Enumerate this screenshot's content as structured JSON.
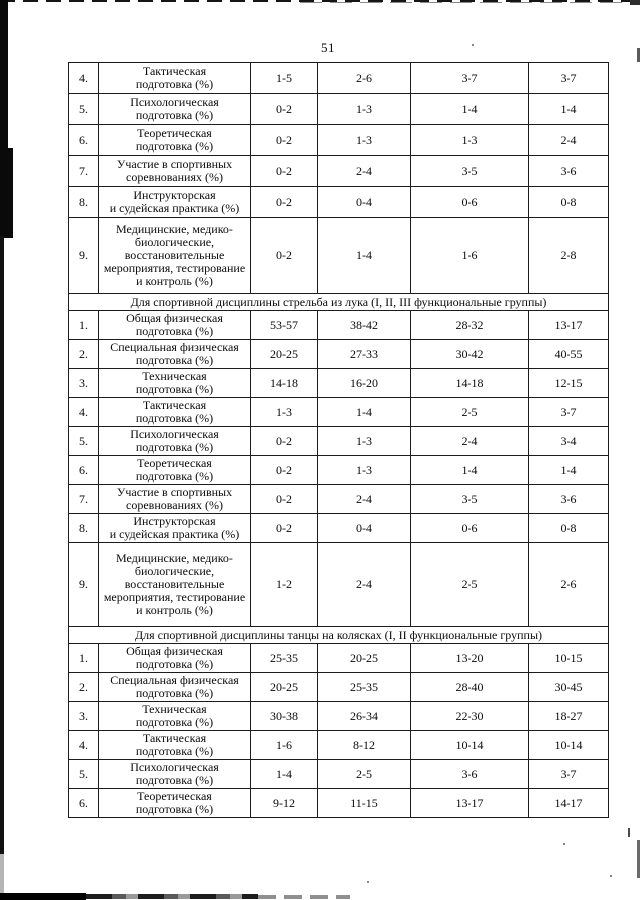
{
  "page": {
    "number": "51"
  },
  "table": {
    "sections": [
      {
        "title": null,
        "rows": [
          {
            "num": "4.",
            "label": "Тактическая\nподготовка (%)",
            "values": [
              "1-5",
              "2-6",
              "3-7",
              "3-7"
            ]
          },
          {
            "num": "5.",
            "label": "Психологическая\nподготовка (%)",
            "values": [
              "0-2",
              "1-3",
              "1-4",
              "1-4"
            ]
          },
          {
            "num": "6.",
            "label": "Теоретическая\nподготовка (%)",
            "values": [
              "0-2",
              "1-3",
              "1-3",
              "2-4"
            ]
          },
          {
            "num": "7.",
            "label": "Участие в спортивных\nсоревнованиях (%)",
            "values": [
              "0-2",
              "2-4",
              "3-5",
              "3-6"
            ]
          },
          {
            "num": "8.",
            "label": "Инструкторская\nи судейская практика (%)",
            "values": [
              "0-2",
              "0-4",
              "0-6",
              "0-8"
            ]
          },
          {
            "num": "9.",
            "label": "Медицинские, медико-\nбиологические,\nвосстановительные\nмероприятия, тестирование\nи контроль (%)",
            "values": [
              "0-2",
              "1-4",
              "1-6",
              "2-8"
            ]
          }
        ]
      },
      {
        "title": "Для спортивной дисциплины стрельба из лука (I, II, III функциональные группы)",
        "rows": [
          {
            "num": "1.",
            "label": "Общая физическая\nподготовка (%)",
            "values": [
              "53-57",
              "38-42",
              "28-32",
              "13-17"
            ]
          },
          {
            "num": "2.",
            "label": "Специальная физическая\nподготовка (%)",
            "values": [
              "20-25",
              "27-33",
              "30-42",
              "40-55"
            ]
          },
          {
            "num": "3.",
            "label": "Техническая\nподготовка (%)",
            "values": [
              "14-18",
              "16-20",
              "14-18",
              "12-15"
            ]
          },
          {
            "num": "4.",
            "label": "Тактическая\nподготовка (%)",
            "values": [
              "1-3",
              "1-4",
              "2-5",
              "3-7"
            ]
          },
          {
            "num": "5.",
            "label": "Психологическая\nподготовка (%)",
            "values": [
              "0-2",
              "1-3",
              "2-4",
              "3-4"
            ]
          },
          {
            "num": "6.",
            "label": "Теоретическая\nподготовка (%)",
            "values": [
              "0-2",
              "1-3",
              "1-4",
              "1-4"
            ]
          },
          {
            "num": "7.",
            "label": "Участие в спортивных\nсоревнованиях (%)",
            "values": [
              "0-2",
              "2-4",
              "3-5",
              "3-6"
            ]
          },
          {
            "num": "8.",
            "label": "Инструкторская\nи судейская практика (%)",
            "values": [
              "0-2",
              "0-4",
              "0-6",
              "0-8"
            ]
          },
          {
            "num": "9.",
            "label": "Медицинские, медико-\nбиологические,\nвосстановительные\nмероприятия, тестирование\nи контроль (%)",
            "values": [
              "1-2",
              "2-4",
              "2-5",
              "2-6"
            ]
          }
        ]
      },
      {
        "title": "Для спортивной дисциплины танцы на колясках (I, II функциональные группы)",
        "rows": [
          {
            "num": "1.",
            "label": "Общая физическая\nподготовка (%)",
            "values": [
              "25-35",
              "20-25",
              "13-20",
              "10-15"
            ]
          },
          {
            "num": "2.",
            "label": "Специальная физическая\nподготовка (%)",
            "values": [
              "20-25",
              "25-35",
              "28-40",
              "30-45"
            ]
          },
          {
            "num": "3.",
            "label": "Техническая\nподготовка (%)",
            "values": [
              "30-38",
              "26-34",
              "22-30",
              "18-27"
            ]
          },
          {
            "num": "4.",
            "label": "Тактическая\nподготовка (%)",
            "values": [
              "1-6",
              "8-12",
              "10-14",
              "10-14"
            ]
          },
          {
            "num": "5.",
            "label": "Психологическая\nподготовка (%)",
            "values": [
              "1-4",
              "2-5",
              "3-6",
              "3-7"
            ]
          },
          {
            "num": "6.",
            "label": "Теоретическая\nподготовка (%)",
            "values": [
              "9-12",
              "11-15",
              "13-17",
              "14-17"
            ]
          }
        ]
      }
    ]
  }
}
